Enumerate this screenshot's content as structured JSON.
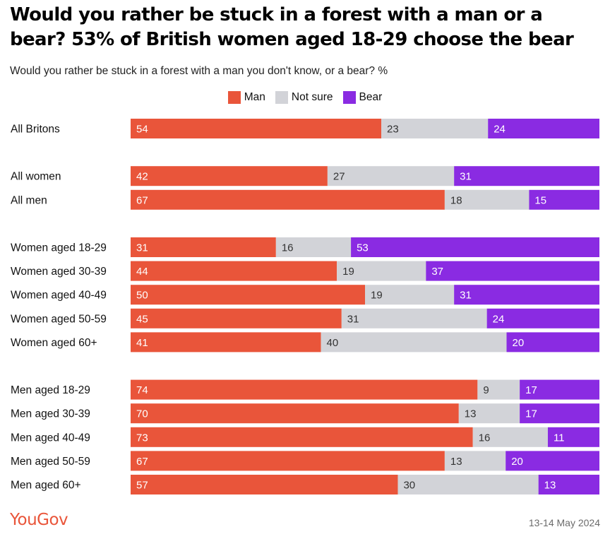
{
  "header": {
    "title": "Would you rather be stuck in a forest with a man or a bear? 53% of British women aged 18-29 choose the bear",
    "subtitle": "Would you rather be stuck in a forest with a man you don't know, or a bear? %"
  },
  "colors": {
    "man": "#e9553a",
    "not_sure": "#d2d3d8",
    "bear": "#8a2be2"
  },
  "chart_data": {
    "type": "bar",
    "orientation": "horizontal",
    "stacked": true,
    "legend_position": "top-center",
    "categories": [
      "All Britons",
      "All women",
      "All men",
      "Women aged 18-29",
      "Women aged 30-39",
      "Women aged 40-49",
      "Women aged 50-59",
      "Women aged 60+",
      "Men aged 18-29",
      "Men aged 30-39",
      "Men aged 40-49",
      "Men aged 50-59",
      "Men aged 60+"
    ],
    "series": [
      {
        "name": "Man",
        "color": "#e9553a",
        "values": [
          54,
          42,
          67,
          31,
          44,
          50,
          45,
          41,
          74,
          70,
          73,
          67,
          57
        ]
      },
      {
        "name": "Not sure",
        "color": "#d2d3d8",
        "values": [
          23,
          27,
          18,
          16,
          19,
          19,
          31,
          40,
          9,
          13,
          16,
          13,
          30
        ]
      },
      {
        "name": "Bear",
        "color": "#8a2be2",
        "values": [
          24,
          31,
          15,
          53,
          37,
          31,
          24,
          20,
          17,
          17,
          11,
          20,
          13
        ]
      }
    ],
    "groups": [
      [
        0
      ],
      [
        1,
        2
      ],
      [
        3,
        4,
        5,
        6,
        7
      ],
      [
        8,
        9,
        10,
        11,
        12
      ]
    ]
  },
  "footer": {
    "source": "YouGov",
    "date": "13-14 May 2024"
  }
}
